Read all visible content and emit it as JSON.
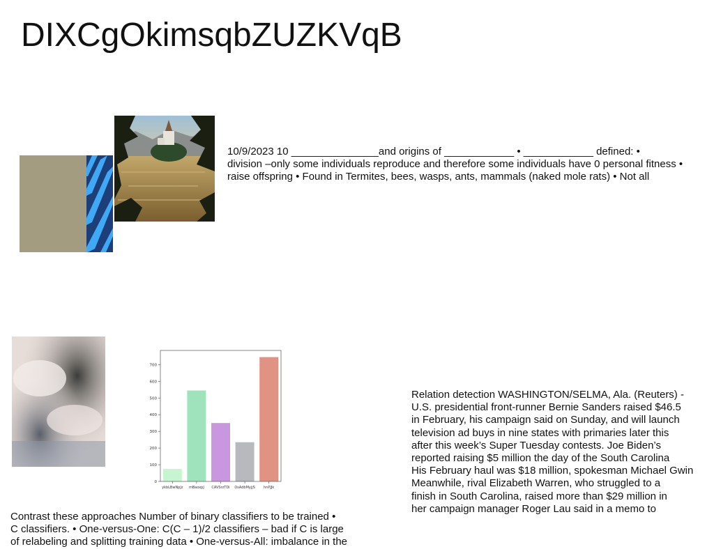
{
  "title": "DIXCgOkimsqbZUZKVqB",
  "text_top": [
    "10/9/2023 10 _______________and origins of ____________ • ____________ defined: •",
    "division –only some individuals reproduce and therefore some individuals have 0 personal fitness •",
    "raise offspring • Found in Termites, bees, wasps, ants, mammals (naked mole rats) • Not all"
  ],
  "text_right": [
    "Relation detection WASHINGTON/SELMA, Ala. (Reuters) -",
    "U.S. presidential front-runner Bernie Sanders raised $46.5",
    "in February, his campaign said on Sunday, and will launch",
    "television ad buys in nine states with primaries later this",
    "after this week’s Super Tuesday contests. Joe Biden’s",
    "reported raising $5 million the day of the South Carolina",
    "His February haul was $18 million, spokesman Michael Gwin",
    "Meanwhile, rival Elizabeth Warren, who struggled to a",
    "finish in South Carolina, raised more than $29 million in",
    "her campaign manager Roger Lau said in a memo to"
  ],
  "text_bottom": [
    "Contrast these approaches Number of binary classifiers to be trained •",
    "C classifiers. • One-versus-One: C(C – 1)/2 classifiers – bad if C is large",
    "of relabeling and splitting training data • One-versus-All: imbalance in the"
  ],
  "chart_data": {
    "type": "bar",
    "categories": [
      "ykbLBwNpJz",
      "mBaoxpJ",
      "CAVSrzTDi",
      "OsAdbMyjjS",
      "hnPJJk"
    ],
    "values": [
      75,
      545,
      350,
      235,
      745
    ],
    "colors": [
      "#c6f5cf",
      "#9fe3bd",
      "#c996e0",
      "#b8b9bd",
      "#e09383"
    ],
    "yticks": [
      0,
      100,
      200,
      300,
      400,
      500,
      600,
      700
    ],
    "ylim": [
      0,
      785
    ],
    "title": "",
    "xlabel": "",
    "ylabel": ""
  }
}
